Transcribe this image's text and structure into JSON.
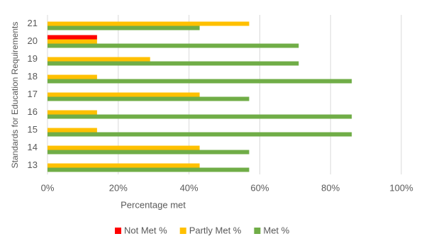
{
  "chart_data": {
    "type": "bar",
    "orientation": "horizontal",
    "x_label": "Percentage met",
    "y_label": "Standards for Education Requirements",
    "categories": [
      "13",
      "14",
      "15",
      "16",
      "17",
      "18",
      "19",
      "20",
      "21"
    ],
    "series": [
      {
        "name": "Not Met %",
        "color": "#ff0000",
        "values": [
          0,
          0,
          0,
          0,
          0,
          0,
          0,
          14,
          0
        ]
      },
      {
        "name": "Partly Met %",
        "color": "#ffc000",
        "values": [
          43,
          43,
          14,
          14,
          43,
          14,
          29,
          14,
          57
        ]
      },
      {
        "name": "Met %",
        "color": "#70ad47",
        "values": [
          57,
          57,
          86,
          86,
          57,
          86,
          71,
          71,
          43
        ]
      }
    ],
    "xlim": [
      0,
      100
    ],
    "xticks": [
      {
        "value": 0,
        "label": "0%"
      },
      {
        "value": 20,
        "label": "20%"
      },
      {
        "value": 40,
        "label": "40%"
      },
      {
        "value": 60,
        "label": "60%"
      },
      {
        "value": 80,
        "label": "80%"
      },
      {
        "value": 100,
        "label": "100%"
      }
    ],
    "grid": true,
    "legend": "bottom"
  }
}
